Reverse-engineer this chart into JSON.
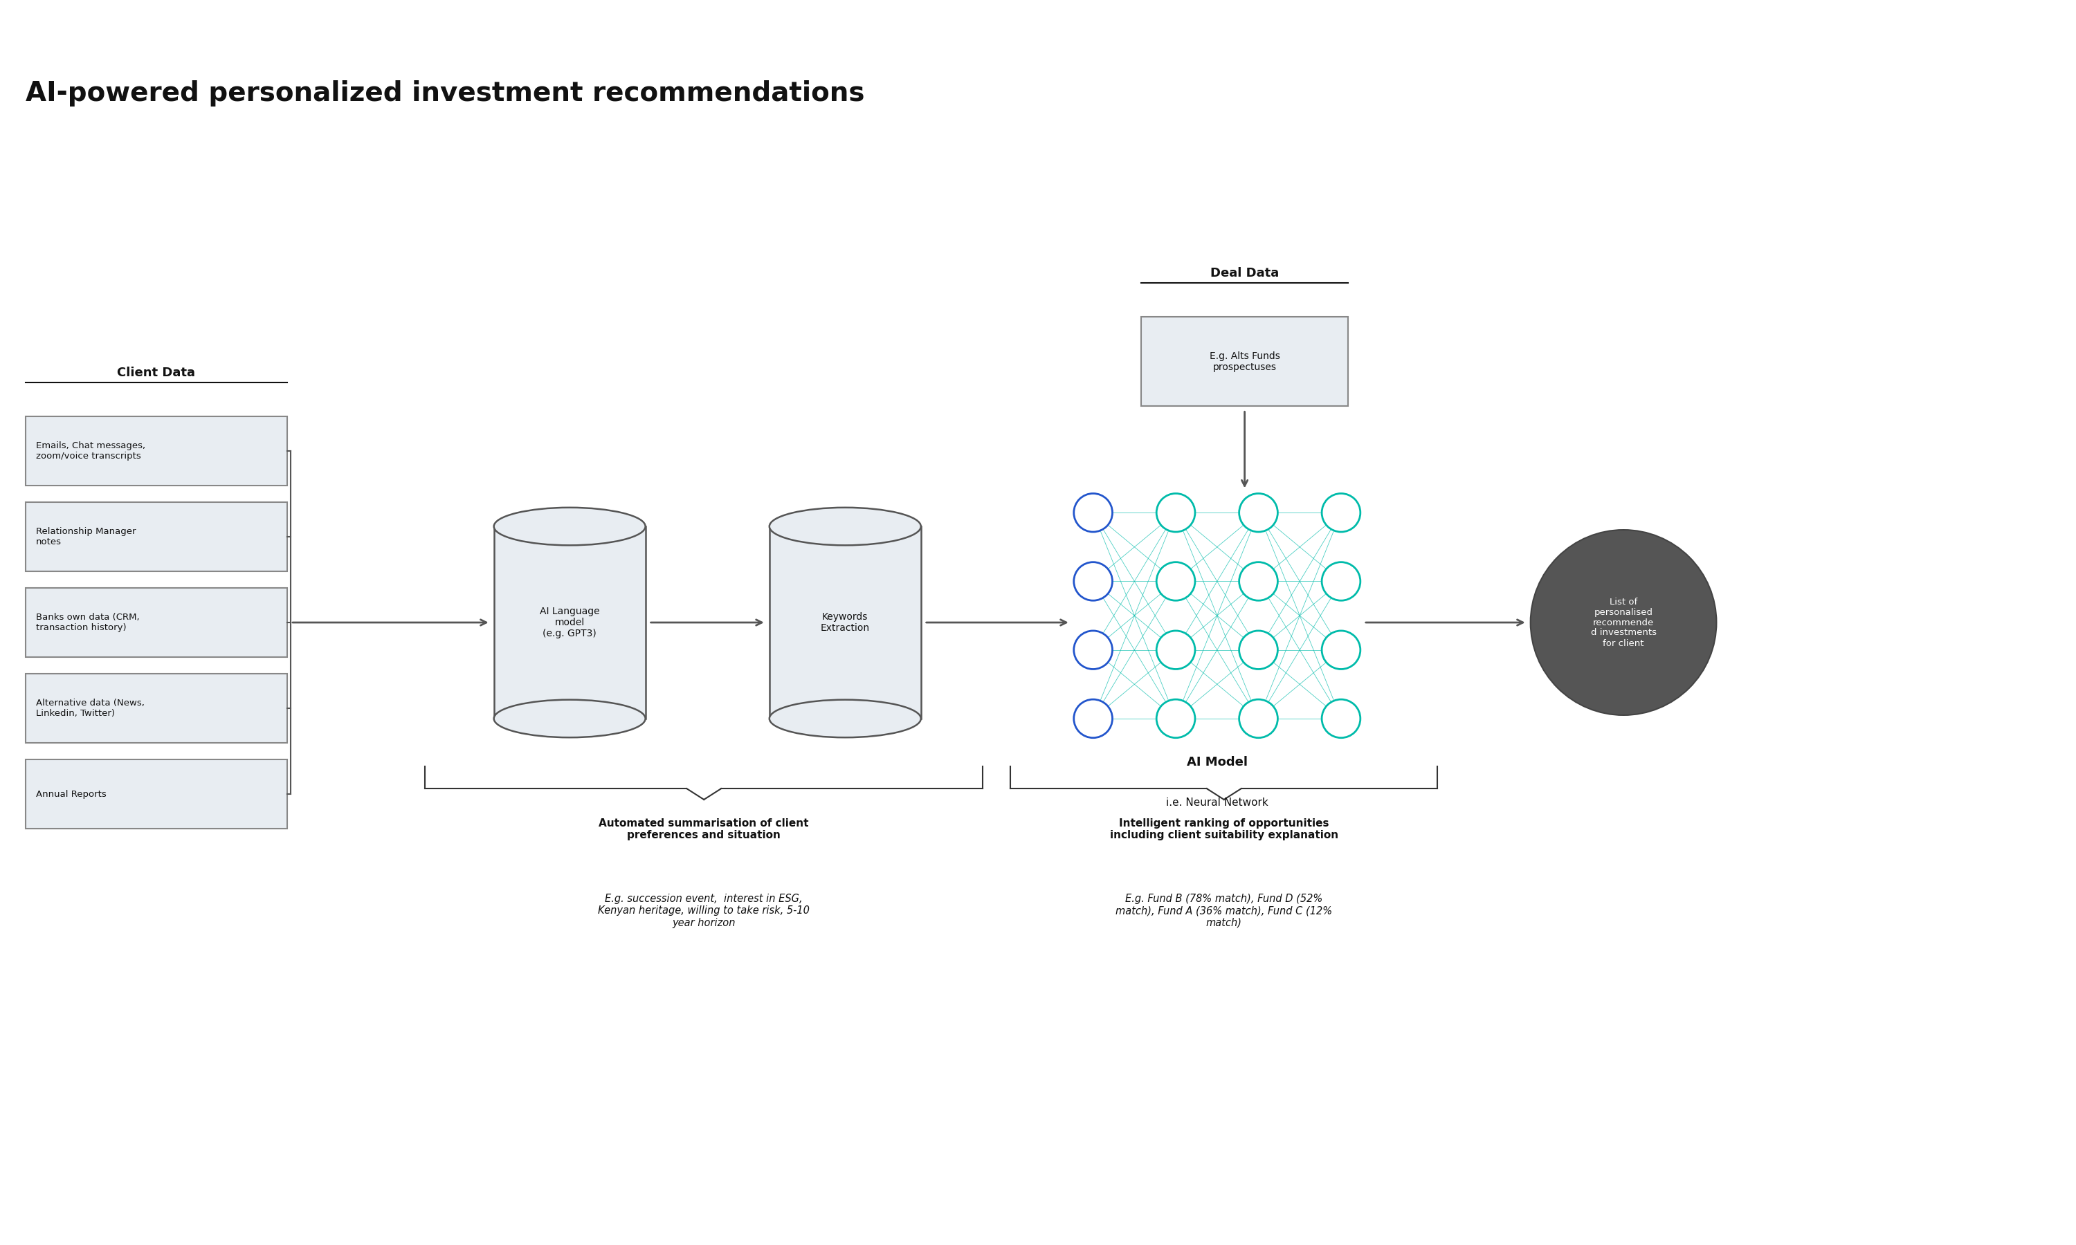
{
  "title": "AI-powered personalized investment recommendations",
  "title_fontsize": 28,
  "bg_color": "#ffffff",
  "client_data_label": "Client Data",
  "deal_data_label": "Deal Data",
  "client_boxes": [
    "Emails, Chat messages,\nzoom/voice transcripts",
    "Relationship Manager\nnotes",
    "Banks own data (CRM,\ntransaction history)",
    "Alternative data (News,\nLinkedin, Twitter)",
    "Annual Reports"
  ],
  "deal_box": "E.g. Alts Funds\nprospectuses",
  "cylinder1_label": "AI Language\nmodel\n(e.g. GPT3)",
  "cylinder2_label": "Keywords\nExtraction",
  "ai_model_label": "AI Model",
  "neural_network_label": "i.e. Neural Network",
  "output_label": "List of\npersonalised\nrecommende\nd investments\nfor client",
  "bottom_label1_bold": "Automated summarisation of client\npreferences and situation",
  "bottom_label1_italic": "E.g. succession event,  interest in ESG,\nKenyan heritage, willing to take risk, 5-10\nyear horizon",
  "bottom_label2_bold": "Intelligent ranking of opportunities\nincluding client suitability explanation",
  "bottom_label2_italic": "E.g. Fund B (78% match), Fund D (52%\nmatch), Fund A (36% match), Fund C (12%\nmatch)",
  "box_bg": "#e8edf2",
  "box_edge": "#888888",
  "cylinder_bg": "#e8edf2",
  "cylinder_edge": "#555555",
  "nn_blue": "#2255cc",
  "nn_teal": "#00bbaa",
  "output_circle_color": "#555555",
  "arrow_color": "#555555",
  "brace_color": "#333333"
}
